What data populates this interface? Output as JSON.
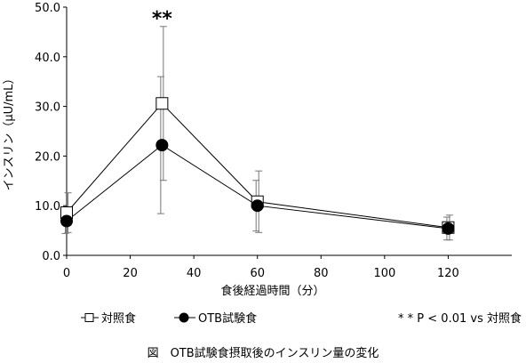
{
  "chart_data": {
    "type": "line",
    "x": [
      0,
      30,
      60,
      120
    ],
    "xlabel": "食後経過時間（分）",
    "ylabel": "インスリン（μU/mL）",
    "xlim": [
      0,
      140
    ],
    "ylim": [
      0,
      50
    ],
    "x_ticks": [
      "0",
      "20",
      "40",
      "60",
      "80",
      "100",
      "120"
    ],
    "y_ticks": [
      "0.0",
      "10.0",
      "20.0",
      "30.0",
      "40.0",
      "50.0"
    ],
    "grid": false,
    "legend_position": "bottom",
    "series": [
      {
        "name": "対照食",
        "marker": "open-square",
        "color": "#000000",
        "values": [
          8.6,
          30.6,
          10.8,
          5.6
        ],
        "error": [
          4.0,
          15.5,
          6.2,
          2.5
        ]
      },
      {
        "name": "OTB試験食",
        "marker": "filled-circle",
        "color": "#000000",
        "values": [
          6.9,
          22.2,
          10.0,
          5.4
        ],
        "error": [
          2.5,
          13.8,
          5.1,
          2.3
        ]
      }
    ],
    "significance_marks": [
      {
        "x": 30,
        "label": "**"
      }
    ],
    "significance_note": "* * P < 0.01 vs 対照食"
  },
  "caption": "図　OTB試験食摂取後のインスリン量の変化"
}
